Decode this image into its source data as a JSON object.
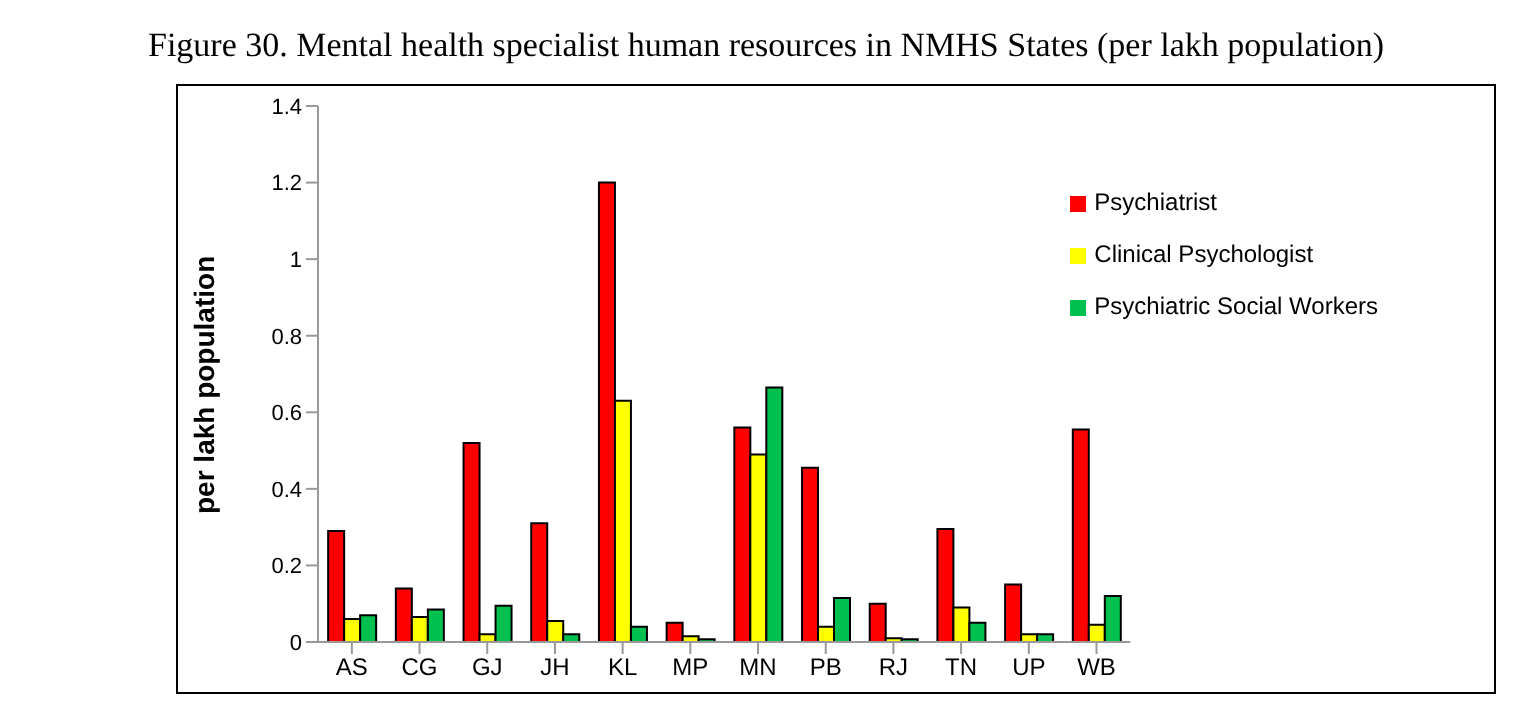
{
  "chart_data": {
    "type": "bar",
    "title": "Figure 30. Mental health specialist human resources in NMHS States (per lakh population)",
    "ylabel": "per lakh population",
    "categories": [
      "AS",
      "CG",
      "GJ",
      "JH",
      "KL",
      "MP",
      "MN",
      "PB",
      "RJ",
      "TN",
      "UP",
      "WB"
    ],
    "series": [
      {
        "name": "Psychiatrist",
        "color": "#ff0000",
        "values": [
          0.29,
          0.14,
          0.52,
          0.31,
          1.2,
          0.05,
          0.56,
          0.455,
          0.1,
          0.295,
          0.15,
          0.555
        ]
      },
      {
        "name": "Clinical Psychologist",
        "color": "#ffff00",
        "values": [
          0.06,
          0.065,
          0.02,
          0.055,
          0.63,
          0.015,
          0.49,
          0.04,
          0.01,
          0.09,
          0.02,
          0.045
        ]
      },
      {
        "name": "Psychiatric  Social Workers",
        "color": "#00c050",
        "values": [
          0.07,
          0.085,
          0.095,
          0.02,
          0.04,
          0.007,
          0.665,
          0.115,
          0.007,
          0.05,
          0.02,
          0.12
        ]
      }
    ],
    "ylim": [
      0,
      1.4
    ],
    "yticks": [
      0,
      0.2,
      0.4,
      0.6,
      0.8,
      1,
      1.2,
      1.4
    ],
    "grid": false,
    "legend": "top right"
  }
}
